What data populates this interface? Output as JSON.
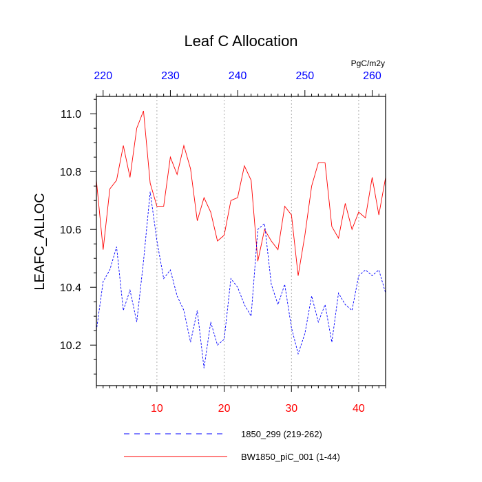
{
  "chart_data": {
    "type": "line",
    "title": "Leaf C Allocation",
    "units": "PgC/m2y",
    "ylabel": "LEAFC_ALLOC",
    "xlim": [
      1,
      44
    ],
    "ylim": [
      10.06,
      11.06
    ],
    "x_bottom_ticks": [
      10,
      20,
      30,
      40
    ],
    "x_bottom_color": "#ff0000",
    "x_top_ticks": [
      220,
      230,
      240,
      250,
      260
    ],
    "x_top_offset": 218,
    "x_top_color": "#0000ff",
    "y_ticks": [
      10.2,
      10.4,
      10.6,
      10.8,
      11.0
    ],
    "y_tick_labels": [
      "10.2",
      "10.4",
      "10.6",
      "10.8",
      "11.0"
    ],
    "grid": "vertical dotted at bottom-axis ticks",
    "series": [
      {
        "name": "BW1850_piC_001 (1-44)",
        "color": "#ff0000",
        "dash": "solid",
        "x": [
          1,
          2,
          3,
          4,
          5,
          6,
          7,
          8,
          9,
          10,
          11,
          12,
          13,
          14,
          15,
          16,
          17,
          18,
          19,
          20,
          21,
          22,
          23,
          24,
          25,
          26,
          27,
          28,
          29,
          30,
          31,
          32,
          33,
          34,
          35,
          36,
          37,
          38,
          39,
          40,
          41,
          42,
          43,
          44
        ],
        "values": [
          10.77,
          10.53,
          10.74,
          10.77,
          10.89,
          10.78,
          10.95,
          11.01,
          10.76,
          10.68,
          10.68,
          10.85,
          10.79,
          10.89,
          10.81,
          10.63,
          10.71,
          10.66,
          10.56,
          10.58,
          10.7,
          10.71,
          10.82,
          10.77,
          10.49,
          10.6,
          10.56,
          10.53,
          10.68,
          10.65,
          10.44,
          10.58,
          10.75,
          10.83,
          10.83,
          10.61,
          10.57,
          10.69,
          10.6,
          10.66,
          10.64,
          10.78,
          10.65,
          10.78
        ]
      },
      {
        "name": "1850_299 (219-262)",
        "color": "#0000ff",
        "dash": "dashed",
        "x": [
          1,
          2,
          3,
          4,
          5,
          6,
          7,
          8,
          9,
          10,
          11,
          12,
          13,
          14,
          15,
          16,
          17,
          18,
          19,
          20,
          21,
          22,
          23,
          24,
          25,
          26,
          27,
          28,
          29,
          30,
          31,
          32,
          33,
          34,
          35,
          36,
          37,
          38,
          39,
          40,
          41,
          42,
          43,
          44
        ],
        "values": [
          10.25,
          10.42,
          10.46,
          10.54,
          10.32,
          10.39,
          10.28,
          10.49,
          10.73,
          10.56,
          10.43,
          10.46,
          10.37,
          10.32,
          10.21,
          10.32,
          10.12,
          10.28,
          10.2,
          10.22,
          10.43,
          10.4,
          10.34,
          10.3,
          10.6,
          10.62,
          10.41,
          10.34,
          10.41,
          10.26,
          10.17,
          10.24,
          10.37,
          10.28,
          10.34,
          10.21,
          10.38,
          10.34,
          10.32,
          10.44,
          10.46,
          10.44,
          10.46,
          10.38
        ]
      }
    ],
    "legend": [
      {
        "label": "1850_299 (219-262)",
        "color": "#0000ff",
        "dash": "dashed"
      },
      {
        "label": "BW1850_piC_001 (1-44)",
        "color": "#ff0000",
        "dash": "solid"
      }
    ]
  }
}
